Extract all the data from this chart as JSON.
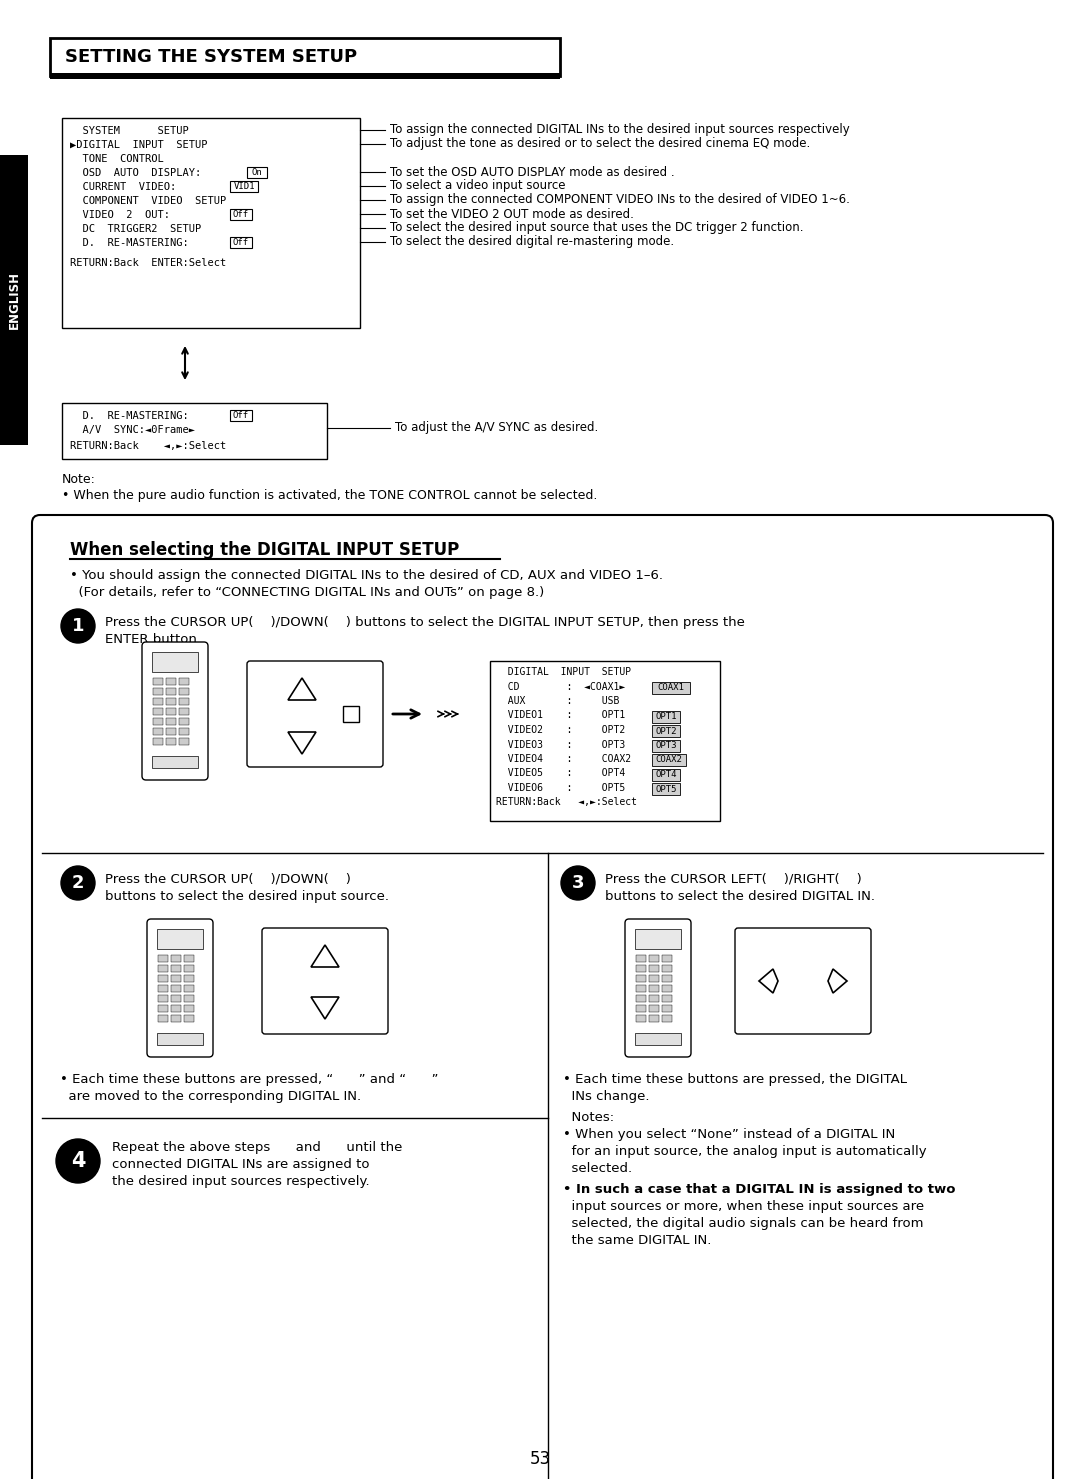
{
  "page_bg": "#ffffff",
  "title": "SETTING THE SYSTEM SETUP",
  "page_number": "53",
  "note_text2": "• When the pure audio function is activated, the TONE CONTROL cannot be selected.",
  "section_title": "When selecting the DIGITAL INPUT SETUP",
  "intro_text1": "• You should assign the connected DIGITAL INs to the desired of CD, AUX and VIDEO 1–6.",
  "intro_text2": "  (For details, refer to “CONNECTING DIGITAL INs and OUTs” on page 8.)",
  "menu_annotations": [
    "To assign the connected DIGITAL INs to the desired input sources respectively",
    "To adjust the tone as desired or to select the desired cinema EQ mode.",
    "To set the OSD AUTO DISPLAY mode as desired .",
    "To select a video input source",
    "To assign the connected COMPONENT VIDEO INs to the desired of VIDEO 1~6.",
    "To set the VIDEO 2 OUT mode as desired.",
    "To select the desired input source that uses the DC trigger 2 function.",
    "To select the desired digital re-mastering mode."
  ],
  "menu2_annotation": "To adjust the A/V SYNC as desired.",
  "bullet2": "• Each time these buttons are pressed, “      ” and “      ”\n  are moved to the corresponding DIGITAL IN.",
  "bullet3a": "• Each time these buttons are pressed, the DIGITAL\n  INs change.",
  "notes3": "  Notes:",
  "note3a": "• When you select “None” instead of a DIGITAL IN\n  for an input source, the analog input is automatically\n  selected.",
  "note3b": "• In such a case that a DIGITAL IN is assigned to two\n  input sources or more, when these input sources are\n  selected, the digital audio signals can be heard from\n  the same DIGITAL IN."
}
